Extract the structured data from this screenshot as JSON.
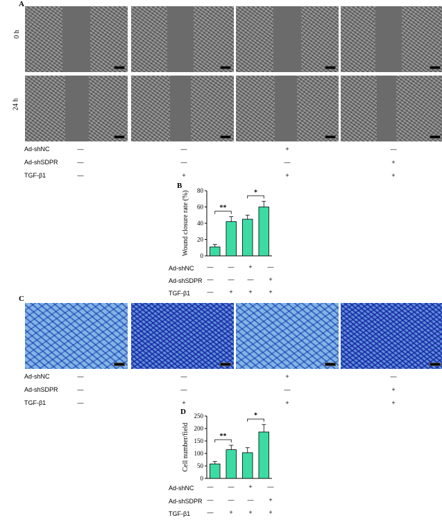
{
  "panels": {
    "A": "A",
    "B": "B",
    "C": "C",
    "D": "D"
  },
  "row_labels": [
    "0 h",
    "24 h"
  ],
  "treatment_labels": [
    "Ad-shNC",
    "Ad-shSDPR",
    "TGF-β1"
  ],
  "image_treatment_grid": [
    [
      "—",
      "—",
      "+",
      "—"
    ],
    [
      "—",
      "—",
      "—",
      "+"
    ],
    [
      "—",
      "+",
      "+",
      "+"
    ]
  ],
  "chart_treatment_grid": [
    [
      "—",
      "—",
      "+",
      "—"
    ],
    [
      "—",
      "—",
      "—",
      "+"
    ],
    [
      "—",
      "+",
      "+",
      "+"
    ]
  ],
  "colors": {
    "bar_fill": "#3ddba4",
    "stain": "#5c8fd8"
  },
  "chart_data": [
    {
      "type": "bar",
      "panel": "B",
      "ylabel": "Wound closure rate (%)",
      "ylim": [
        0,
        80
      ],
      "yticks": [
        0,
        20,
        40,
        60,
        80
      ],
      "values": [
        11,
        42,
        45,
        60
      ],
      "errors": [
        3,
        6,
        5,
        7
      ],
      "significance": [
        {
          "from": 0,
          "to": 1,
          "label": "**"
        },
        {
          "from": 2,
          "to": 3,
          "label": "*"
        }
      ]
    },
    {
      "type": "bar",
      "panel": "D",
      "ylabel": "Cell number/field",
      "ylim": [
        0,
        250
      ],
      "yticks": [
        0,
        50,
        100,
        150,
        200,
        250
      ],
      "values": [
        58,
        115,
        103,
        186
      ],
      "errors": [
        10,
        18,
        20,
        30
      ],
      "significance": [
        {
          "from": 0,
          "to": 1,
          "label": "**"
        },
        {
          "from": 2,
          "to": 3,
          "label": "*"
        }
      ]
    }
  ]
}
